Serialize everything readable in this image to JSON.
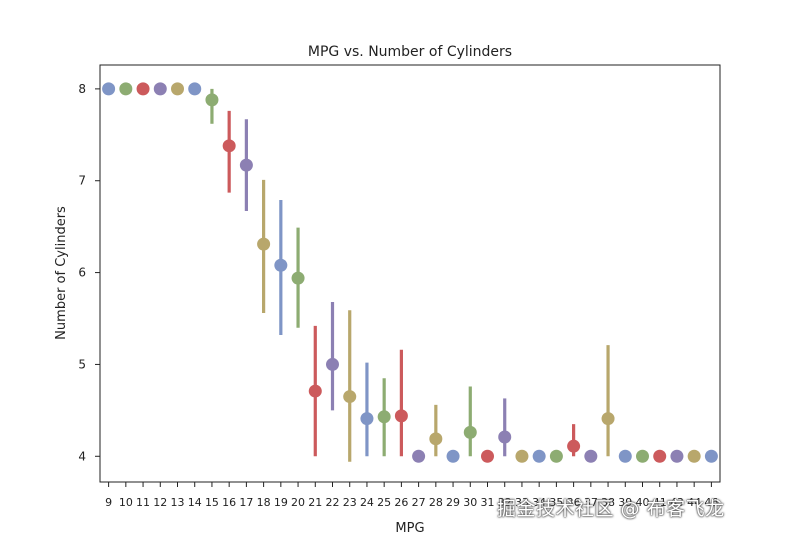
{
  "chart_data": {
    "type": "point",
    "title": "MPG vs. Number of Cylinders",
    "xlabel": "MPG",
    "ylabel": "Number of Cylinders",
    "ylim": [
      3.72,
      8.26
    ],
    "yticks": [
      4,
      5,
      6,
      7,
      8
    ],
    "grid": false,
    "legend": "none",
    "palette": [
      "#7f95c6",
      "#8dac72",
      "#cc5a5c",
      "#8c80b3",
      "#b8a76c"
    ],
    "categories": [
      "9",
      "10",
      "11",
      "12",
      "13",
      "14",
      "15",
      "16",
      "17",
      "18",
      "19",
      "20",
      "21",
      "22",
      "23",
      "24",
      "25",
      "26",
      "27",
      "28",
      "29",
      "30",
      "31",
      "32",
      "33",
      "34",
      "35",
      "36",
      "37",
      "38",
      "39",
      "40",
      "41",
      "43",
      "44",
      "46"
    ],
    "tick_labels": [
      "9",
      "10",
      "11",
      "12",
      "13",
      "14",
      "15",
      "16",
      "17",
      "18",
      "19",
      "20",
      "21",
      "22",
      "23",
      "24",
      "25",
      "26",
      "27",
      "28",
      "29",
      "30",
      "31",
      "32",
      "33",
      "34",
      "35",
      "36",
      "37",
      "38",
      "39",
      "40",
      "41",
      "43",
      "44",
      "46"
    ],
    "values": [
      8,
      8,
      8,
      8,
      8,
      8,
      7.88,
      7.38,
      7.17,
      6.31,
      6.08,
      5.94,
      4.71,
      5.0,
      4.65,
      4.41,
      4.43,
      4.44,
      4.0,
      4.19,
      4.0,
      4.26,
      4.0,
      4.21,
      4.0,
      4.0,
      4.0,
      4.11,
      4.0,
      4.41,
      4.0,
      4.0,
      4.0,
      4.0,
      4.0,
      4.0
    ],
    "ci_low": [
      8,
      8,
      8,
      8,
      8,
      8,
      7.62,
      6.87,
      6.67,
      5.56,
      5.32,
      5.4,
      4.0,
      4.5,
      3.94,
      4.0,
      4.0,
      4.0,
      4.0,
      4.0,
      4.0,
      4.0,
      4.0,
      4.0,
      4.0,
      4.0,
      4.0,
      4.0,
      4.0,
      4.0,
      4.0,
      4.0,
      4.0,
      4.0,
      4.0,
      4.0
    ],
    "ci_high": [
      8,
      8,
      8,
      8,
      8,
      8,
      8.0,
      7.76,
      7.67,
      7.01,
      6.79,
      6.49,
      5.42,
      5.68,
      5.59,
      5.02,
      4.85,
      5.16,
      4.0,
      4.56,
      4.0,
      4.76,
      4.0,
      4.63,
      4.0,
      4.0,
      4.0,
      4.35,
      4.0,
      5.21,
      4.0,
      4.0,
      4.0,
      4.0,
      4.0,
      4.0
    ]
  },
  "watermark": "掘金技术社区 @ 布客飞龙"
}
